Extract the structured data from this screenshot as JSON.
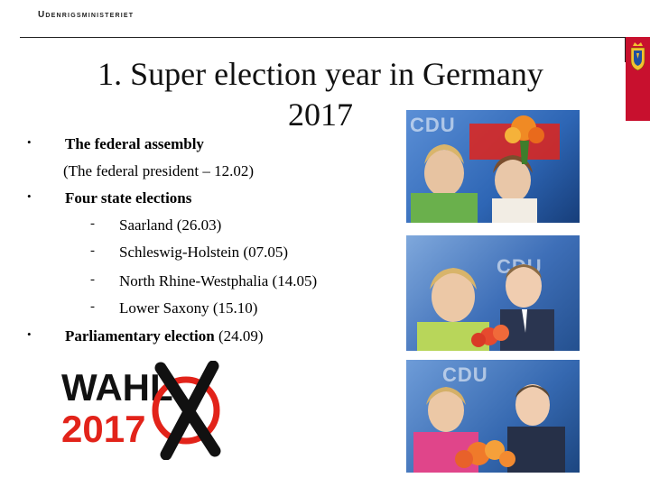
{
  "header": {
    "ministry": "Udenrigsministeriet"
  },
  "slide": {
    "title_line1": "1. Super election year in Germany",
    "title_line2": "2017"
  },
  "bullets": [
    {
      "marker": "•",
      "text": "The federal assembly"
    },
    {
      "marker": "•",
      "text": "Four state elections"
    },
    {
      "marker": "•",
      "text_bold": "Parliamentary election",
      "text_rest": " (24.09)"
    }
  ],
  "federal_president_note": "(The federal president – 12.02)",
  "state_elections": [
    {
      "marker": "-",
      "text": "Saarland (26.03)"
    },
    {
      "marker": "-",
      "text": "Schleswig-Holstein (07.05)"
    },
    {
      "marker": "-",
      "text": "North Rhine-Westphalia  (14.05)"
    },
    {
      "marker": "-",
      "text": "Lower Saxony (15.10)"
    }
  ],
  "logo": {
    "word": "WAHL",
    "year": "2017",
    "mark": "X"
  },
  "photos": [
    {
      "banner": "CDU"
    },
    {
      "banner": "CDU"
    },
    {
      "banner": "CDU"
    }
  ],
  "colors": {
    "accent_red": "#c8102e",
    "wahl_red": "#e2231a",
    "cdu_blue": "#2e66b5"
  }
}
